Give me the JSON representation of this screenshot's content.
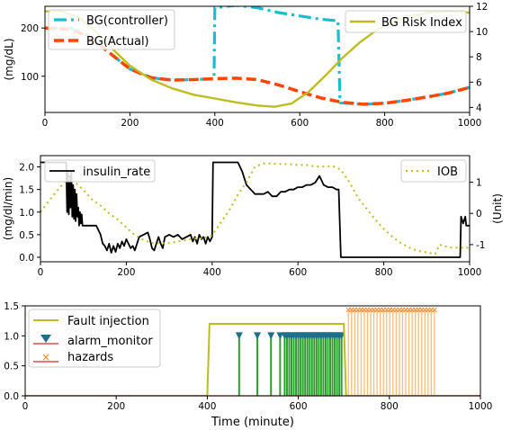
{
  "chart_data": [
    {
      "type": "line",
      "xlim": [
        0,
        1000
      ],
      "ylim": [
        25,
        245
      ],
      "ylabel": "(mg/dL)",
      "xticks": [
        0,
        200,
        400,
        600,
        800,
        1000
      ],
      "yticks": [
        100,
        200
      ],
      "y2lim": [
        3.6,
        12
      ],
      "y2ticks": [
        4,
        6,
        8,
        10,
        12
      ],
      "grid": false,
      "legend_left": "top-left",
      "legend_right": "top-right",
      "series": [
        {
          "name": "BG(controller)",
          "axis": "left",
          "color": "#17becf",
          "dash": "14,5,3,5",
          "width": 3.2,
          "points": [
            [
              0,
              200
            ],
            [
              60,
              200
            ],
            [
              100,
              185
            ],
            [
              150,
              150
            ],
            [
              200,
              115
            ],
            [
              250,
              97
            ],
            [
              300,
              92
            ],
            [
              350,
              93
            ],
            [
              398,
              95
            ],
            [
              400,
              242
            ],
            [
              450,
              247
            ],
            [
              500,
              242
            ],
            [
              550,
              232
            ],
            [
              600,
              225
            ],
            [
              650,
              218
            ],
            [
              690,
              215
            ],
            [
              695,
              45
            ],
            [
              750,
              42
            ],
            [
              800,
              44
            ],
            [
              850,
              50
            ],
            [
              900,
              57
            ],
            [
              950,
              65
            ],
            [
              1000,
              77
            ]
          ]
        },
        {
          "name": "BG(Actual)",
          "axis": "left",
          "color": "#ff4500",
          "dash": "11,5",
          "width": 3.5,
          "points": [
            [
              0,
              200
            ],
            [
              50,
              198
            ],
            [
              100,
              185
            ],
            [
              150,
              150
            ],
            [
              200,
              115
            ],
            [
              250,
              97
            ],
            [
              300,
              92
            ],
            [
              350,
              93
            ],
            [
              400,
              95
            ],
            [
              450,
              96
            ],
            [
              500,
              93
            ],
            [
              550,
              82
            ],
            [
              600,
              68
            ],
            [
              650,
              55
            ],
            [
              700,
              46
            ],
            [
              750,
              42
            ],
            [
              800,
              44
            ],
            [
              850,
              50
            ],
            [
              900,
              57
            ],
            [
              950,
              65
            ],
            [
              1000,
              77
            ]
          ]
        },
        {
          "name": "BG Risk Index",
          "axis": "right",
          "color": "#bcbd22",
          "dash": "",
          "width": 2.4,
          "points": [
            [
              0,
              11.6
            ],
            [
              40,
              11.6
            ],
            [
              80,
              11.1
            ],
            [
              120,
              10.0
            ],
            [
              160,
              8.6
            ],
            [
              200,
              7.3
            ],
            [
              250,
              6.2
            ],
            [
              300,
              5.5
            ],
            [
              350,
              5.0
            ],
            [
              400,
              4.7
            ],
            [
              450,
              4.4
            ],
            [
              500,
              4.15
            ],
            [
              540,
              4.05
            ],
            [
              580,
              4.3
            ],
            [
              620,
              5.2
            ],
            [
              660,
              6.5
            ],
            [
              700,
              7.9
            ],
            [
              740,
              9.1
            ],
            [
              780,
              10.1
            ],
            [
              820,
              10.8
            ],
            [
              860,
              11.2
            ],
            [
              900,
              11.5
            ],
            [
              950,
              11.6
            ],
            [
              1000,
              11.5
            ]
          ]
        }
      ]
    },
    {
      "type": "line",
      "xlim": [
        0,
        1000
      ],
      "ylim": [
        -0.1,
        2.25
      ],
      "ylabel": "(mg/dl/min)",
      "y2label": "(Unit)",
      "xticks": [
        0,
        200,
        400,
        600,
        800,
        1000
      ],
      "yticks": [
        0.0,
        0.5,
        1.0,
        1.5,
        2.0
      ],
      "y2lim": [
        -1.55,
        1.85
      ],
      "y2ticks": [
        -1,
        0,
        1
      ],
      "grid": false,
      "legend_left": "top-left",
      "legend_right": "top-right",
      "series": [
        {
          "name": "insulin_rate",
          "axis": "left",
          "color": "#000000",
          "dash": "",
          "width": 1.8,
          "points": [
            [
              0,
              2.1
            ],
            [
              60,
              2.1
            ],
            [
              62,
              1.0
            ],
            [
              64,
              1.9
            ],
            [
              66,
              0.95
            ],
            [
              68,
              1.8
            ],
            [
              70,
              1.1
            ],
            [
              72,
              1.9
            ],
            [
              74,
              0.9
            ],
            [
              76,
              1.6
            ],
            [
              78,
              0.85
            ],
            [
              80,
              1.5
            ],
            [
              82,
              0.8
            ],
            [
              84,
              1.4
            ],
            [
              86,
              0.9
            ],
            [
              88,
              1.1
            ],
            [
              90,
              0.7
            ],
            [
              92,
              1.0
            ],
            [
              94,
              0.75
            ],
            [
              96,
              0.95
            ],
            [
              98,
              0.7
            ],
            [
              110,
              0.7
            ],
            [
              130,
              0.7
            ],
            [
              140,
              0.5
            ],
            [
              145,
              0.3
            ],
            [
              150,
              0.25
            ],
            [
              155,
              0.15
            ],
            [
              160,
              0.3
            ],
            [
              165,
              0.1
            ],
            [
              170,
              0.25
            ],
            [
              175,
              0.12
            ],
            [
              180,
              0.3
            ],
            [
              185,
              0.2
            ],
            [
              190,
              0.35
            ],
            [
              195,
              0.25
            ],
            [
              200,
              0.4
            ],
            [
              205,
              0.3
            ],
            [
              210,
              0.2
            ],
            [
              215,
              0.25
            ],
            [
              220,
              0.15
            ],
            [
              225,
              0.3
            ],
            [
              230,
              0.45
            ],
            [
              240,
              0.5
            ],
            [
              250,
              0.55
            ],
            [
              255,
              0.4
            ],
            [
              260,
              0.2
            ],
            [
              265,
              0.15
            ],
            [
              270,
              0.3
            ],
            [
              275,
              0.45
            ],
            [
              280,
              0.3
            ],
            [
              285,
              0.2
            ],
            [
              290,
              0.45
            ],
            [
              300,
              0.5
            ],
            [
              310,
              0.45
            ],
            [
              320,
              0.5
            ],
            [
              330,
              0.4
            ],
            [
              340,
              0.45
            ],
            [
              350,
              0.5
            ],
            [
              355,
              0.35
            ],
            [
              360,
              0.45
            ],
            [
              365,
              0.3
            ],
            [
              370,
              0.5
            ],
            [
              375,
              0.4
            ],
            [
              380,
              0.45
            ],
            [
              385,
              0.3
            ],
            [
              390,
              0.45
            ],
            [
              395,
              0.35
            ],
            [
              400,
              0.45
            ],
            [
              402,
              2.1
            ],
            [
              420,
              2.1
            ],
            [
              460,
              2.1
            ],
            [
              470,
              1.9
            ],
            [
              480,
              1.6
            ],
            [
              490,
              1.5
            ],
            [
              500,
              1.4
            ],
            [
              520,
              1.4
            ],
            [
              530,
              1.45
            ],
            [
              540,
              1.35
            ],
            [
              550,
              1.35
            ],
            [
              560,
              1.45
            ],
            [
              570,
              1.45
            ],
            [
              580,
              1.5
            ],
            [
              590,
              1.5
            ],
            [
              600,
              1.55
            ],
            [
              610,
              1.55
            ],
            [
              620,
              1.6
            ],
            [
              630,
              1.6
            ],
            [
              640,
              1.65
            ],
            [
              650,
              1.8
            ],
            [
              660,
              1.6
            ],
            [
              670,
              1.55
            ],
            [
              680,
              1.55
            ],
            [
              690,
              1.5
            ],
            [
              695,
              1.5
            ],
            [
              700,
              0.0
            ],
            [
              760,
              0.0
            ],
            [
              820,
              0.0
            ],
            [
              880,
              0.0
            ],
            [
              940,
              0.0
            ],
            [
              978,
              0.0
            ],
            [
              980,
              0.9
            ],
            [
              985,
              0.75
            ],
            [
              990,
              0.9
            ],
            [
              992,
              0.7
            ],
            [
              1000,
              0.7
            ]
          ]
        },
        {
          "name": "IOB",
          "axis": "right",
          "color": "#bcbd22",
          "dash": "2,4",
          "width": 2,
          "points": [
            [
              0,
              0.05
            ],
            [
              20,
              0.4
            ],
            [
              40,
              0.75
            ],
            [
              60,
              1.05
            ],
            [
              70,
              1.15
            ],
            [
              80,
              1.0
            ],
            [
              100,
              0.75
            ],
            [
              120,
              0.45
            ],
            [
              140,
              0.25
            ],
            [
              160,
              0.0
            ],
            [
              180,
              -0.2
            ],
            [
              200,
              -0.45
            ],
            [
              220,
              -0.7
            ],
            [
              240,
              -0.85
            ],
            [
              260,
              -0.95
            ],
            [
              280,
              -0.95
            ],
            [
              300,
              -0.95
            ],
            [
              320,
              -0.9
            ],
            [
              340,
              -0.85
            ],
            [
              360,
              -0.8
            ],
            [
              380,
              -0.8
            ],
            [
              400,
              -0.7
            ],
            [
              420,
              -0.3
            ],
            [
              440,
              0.1
            ],
            [
              460,
              0.6
            ],
            [
              480,
              1.0
            ],
            [
              500,
              1.5
            ],
            [
              520,
              1.6
            ],
            [
              540,
              1.6
            ],
            [
              560,
              1.58
            ],
            [
              580,
              1.58
            ],
            [
              600,
              1.55
            ],
            [
              620,
              1.55
            ],
            [
              640,
              1.5
            ],
            [
              660,
              1.5
            ],
            [
              680,
              1.52
            ],
            [
              700,
              1.4
            ],
            [
              720,
              1.0
            ],
            [
              740,
              0.5
            ],
            [
              760,
              0.15
            ],
            [
              780,
              -0.2
            ],
            [
              800,
              -0.5
            ],
            [
              820,
              -0.75
            ],
            [
              840,
              -0.95
            ],
            [
              860,
              -1.1
            ],
            [
              880,
              -1.2
            ],
            [
              900,
              -1.25
            ],
            [
              920,
              -1.3
            ],
            [
              930,
              -1.0
            ],
            [
              940,
              -1.05
            ],
            [
              960,
              -1.1
            ],
            [
              980,
              -1.1
            ],
            [
              1000,
              -1.1
            ]
          ]
        }
      ]
    },
    {
      "type": "line",
      "xlim": [
        0,
        1000
      ],
      "ylim": [
        0,
        1.5
      ],
      "xlabel": "Time (minute)",
      "xticks": [
        0,
        200,
        400,
        600,
        800,
        1000
      ],
      "yticks": [
        0.0,
        0.5,
        1.0,
        1.5
      ],
      "grid": false,
      "legend": "top-left",
      "fault_injection": {
        "name": "Fault injection",
        "color": "#bcbd22",
        "points": [
          [
            0,
            0
          ],
          [
            400,
            0
          ],
          [
            405,
            1.2
          ],
          [
            700,
            1.2
          ],
          [
            705,
            0
          ],
          [
            1000,
            0
          ]
        ]
      },
      "alarm_monitor": {
        "name": "alarm_monitor",
        "stem_color": "#2ca02c",
        "marker_color": "#1f6f8b",
        "baseline_color": "#d62728",
        "value": 1.0,
        "x": [
          470,
          510,
          540,
          560,
          570,
          575,
          580,
          585,
          590,
          595,
          600,
          605,
          610,
          615,
          620,
          625,
          630,
          635,
          640,
          645,
          650,
          655,
          660,
          665,
          670,
          675,
          680,
          685,
          690,
          695
        ]
      },
      "hazards": {
        "name": "hazards",
        "stem_color": "#ffbb78",
        "marker_color": "#ff7f0e",
        "baseline_color": "#d62728",
        "value": 1.45,
        "x": [
          710,
          717,
          724,
          731,
          738,
          745,
          752,
          759,
          766,
          773,
          780,
          787,
          794,
          801,
          808,
          815,
          822,
          829,
          836,
          843,
          850,
          857,
          864,
          871,
          878,
          885,
          892,
          899
        ]
      }
    }
  ]
}
